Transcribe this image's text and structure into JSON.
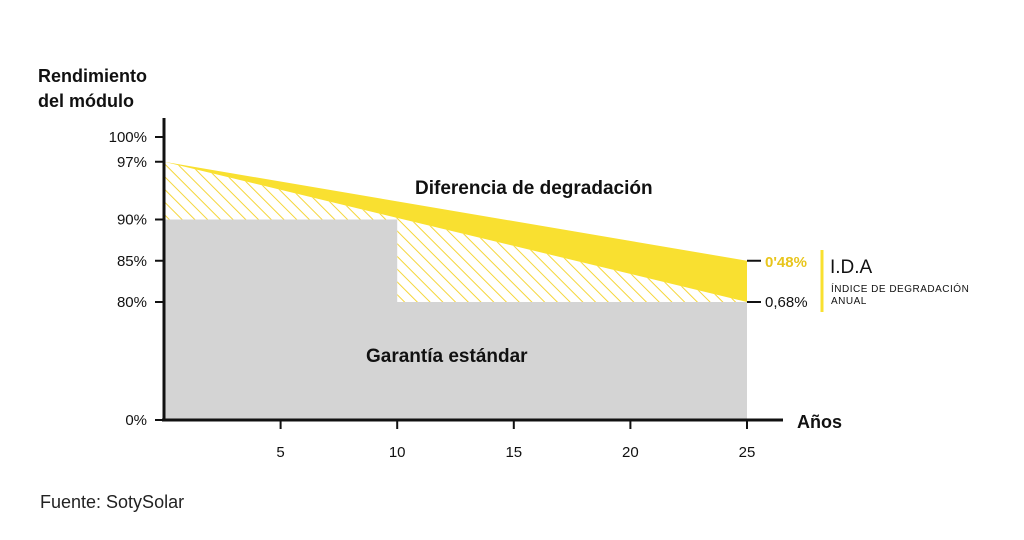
{
  "chart_data": {
    "type": "area",
    "y_axis_title_line1": "Rendimiento",
    "y_axis_title_line2": "del módulo",
    "xlabel": "Años",
    "xlim": [
      0,
      25
    ],
    "y_ticks": [
      "0%",
      "80%",
      "85%",
      "90%",
      "97%",
      "100%"
    ],
    "y_tick_values": [
      0,
      80,
      85,
      90,
      97,
      100
    ],
    "x_ticks": [
      5,
      10,
      15,
      20,
      25
    ],
    "series": [
      {
        "name": "Garantía estándar",
        "points": [
          [
            0,
            90
          ],
          [
            10,
            90
          ],
          [
            10,
            80
          ],
          [
            25,
            80
          ]
        ],
        "color": "#d4d4d4"
      },
      {
        "name": "Diferencia de degradación",
        "top": [
          [
            0,
            97
          ],
          [
            25,
            85
          ]
        ],
        "bottom": [
          [
            0,
            97
          ],
          [
            25,
            80
          ]
        ],
        "color": "#f9e030"
      }
    ],
    "annotations": {
      "rate_sotysolar": "0'48%",
      "rate_standard": "0,68%",
      "ida_title": "I.D.A",
      "ida_line1": "ÍNDICE DE DEGRADACIÓN",
      "ida_line2": "ANUAL"
    }
  },
  "colors": {
    "yellow": "#f9e030",
    "gray": "#d4d4d4",
    "axis": "#111111",
    "label_yellow": "#e8c51c"
  },
  "source": "Fuente: SotySolar"
}
